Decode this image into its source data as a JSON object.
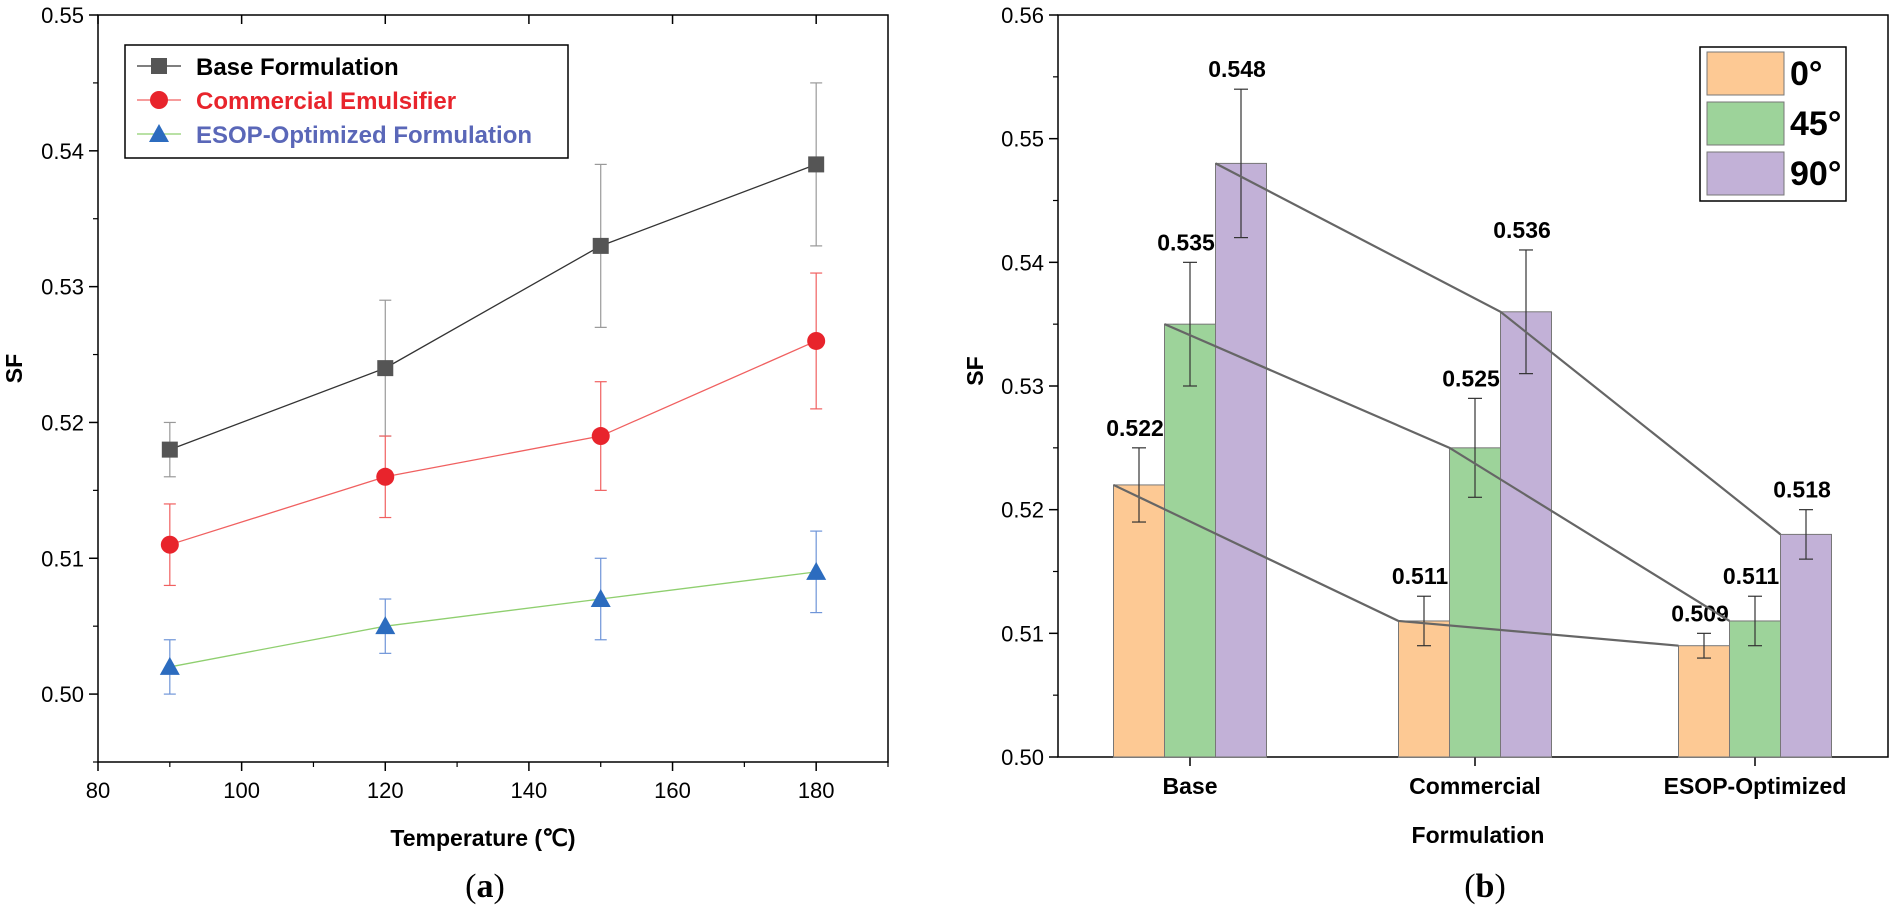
{
  "chart_data": [
    {
      "panel": "a",
      "type": "line",
      "xlabel": "Temperature (℃)",
      "ylabel": "SF",
      "xlim": [
        80,
        190
      ],
      "ylim": [
        0.495,
        0.55
      ],
      "xticks": [
        "80",
        "100",
        "120",
        "140",
        "160",
        "180"
      ],
      "yticks": [
        "0.50",
        "0.51",
        "0.52",
        "0.53",
        "0.54",
        "0.55"
      ],
      "legend_position": "top-left",
      "x": [
        90,
        120,
        150,
        180
      ],
      "series": [
        {
          "name": "Base Formulation",
          "marker": "square",
          "color": "#555555",
          "text_color": "#000000",
          "line_color": "#333333",
          "values": [
            0.518,
            0.524,
            0.533,
            0.539
          ],
          "errors": [
            0.002,
            0.005,
            0.006,
            0.006
          ]
        },
        {
          "name": "Commercial Emulsifier",
          "marker": "circle",
          "color": "#e8242c",
          "text_color": "#e8242c",
          "line_color": "#f06060",
          "values": [
            0.511,
            0.516,
            0.519,
            0.526
          ],
          "errors": [
            0.003,
            0.003,
            0.004,
            0.005
          ]
        },
        {
          "name": "ESOP-Optimized Formulation",
          "marker": "triangle",
          "color": "#2c6cbf",
          "text_color": "#5a67b8",
          "line_color": "#8fcf6f",
          "values": [
            0.502,
            0.505,
            0.507,
            0.509
          ],
          "errors": [
            0.002,
            0.002,
            0.003,
            0.003
          ]
        }
      ]
    },
    {
      "panel": "b",
      "type": "bar",
      "xlabel": "Formulation",
      "ylabel": "SF",
      "ylim": [
        0.5,
        0.56
      ],
      "yticks": [
        "0.50",
        "0.51",
        "0.52",
        "0.53",
        "0.54",
        "0.55",
        "0.56"
      ],
      "categories": [
        "Base",
        "Commercial",
        "ESOP-Optimized"
      ],
      "legend_position": "top-right",
      "series": [
        {
          "name": "0°",
          "color": "#fdc994",
          "values": [
            0.522,
            0.511,
            0.509
          ],
          "errors": [
            0.003,
            0.002,
            0.001
          ],
          "labels": [
            "0.522",
            "0.511",
            "0.509"
          ]
        },
        {
          "name": "45°",
          "color": "#9dd39a",
          "values": [
            0.535,
            0.525,
            0.511
          ],
          "errors": [
            0.005,
            0.004,
            0.002
          ],
          "labels": [
            "0.535",
            "0.525",
            "0.511"
          ]
        },
        {
          "name": "90°",
          "color": "#c2b1d7",
          "values": [
            0.548,
            0.536,
            0.518
          ],
          "errors": [
            0.006,
            0.005,
            0.002
          ],
          "labels": [
            "0.548",
            "0.536",
            "0.518"
          ]
        }
      ]
    }
  ],
  "panel_labels": [
    "(a)",
    "(b)"
  ]
}
